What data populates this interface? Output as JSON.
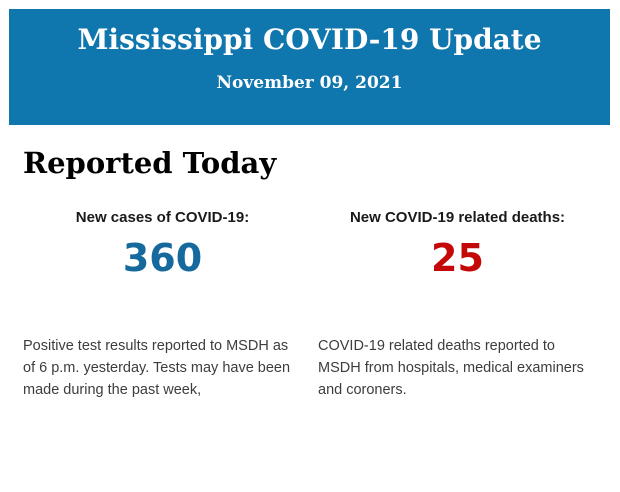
{
  "header": {
    "title": "Mississippi COVID-19 Update",
    "date": "November 09, 2021",
    "background_color": "#1076ae",
    "text_color": "#ffffff"
  },
  "section": {
    "heading": "Reported Today"
  },
  "stats": [
    {
      "label": "New cases of COVID-19:",
      "value": "360",
      "value_color": "#16699c",
      "description": "Positive test results reported to MSDH as of 6 p.m. yesterday. Tests may have been made during the past week,"
    },
    {
      "label": "New COVID-19 related deaths:",
      "value": "25",
      "value_color": "#c40707",
      "description": "COVID-19 related deaths reported to MSDH from hospitals, medical examiners and coroners."
    }
  ]
}
